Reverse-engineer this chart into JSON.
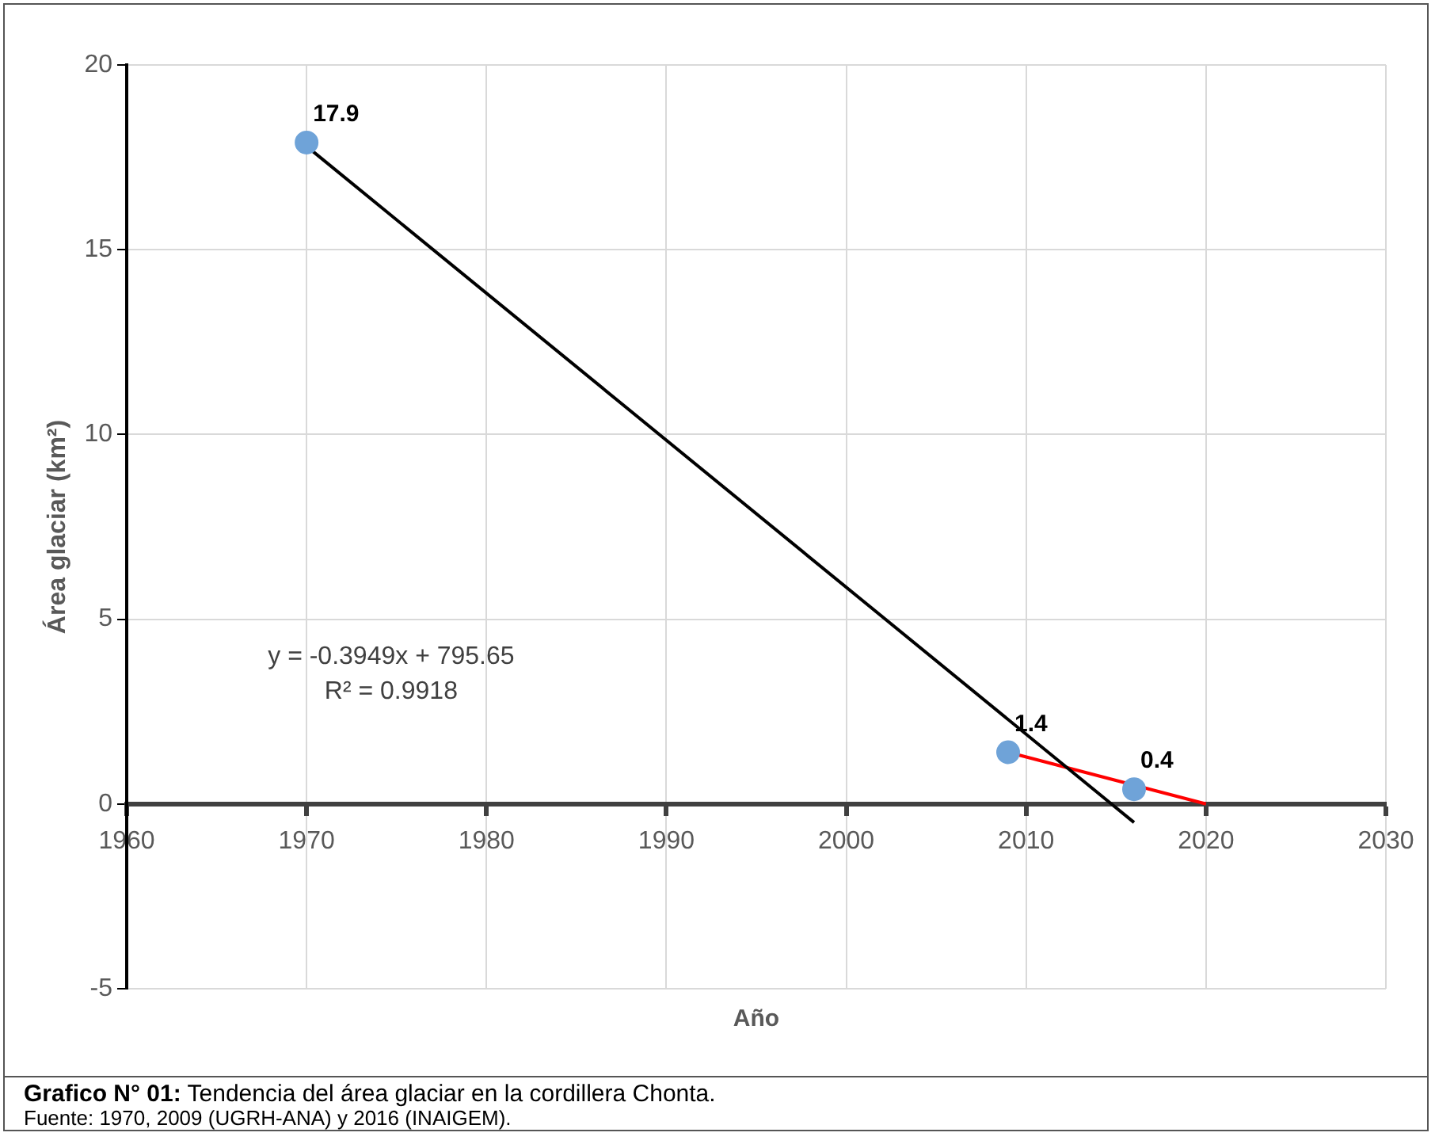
{
  "chart_data": {
    "type": "scatter",
    "title": "Grafico N° 01: Tendencia del área glaciar en la cordillera Chonta.",
    "xlabel": "Año",
    "ylabel": "Área glaciar (km²)",
    "series": [
      {
        "color": "#6fa3d8",
        "marker": "circle",
        "x": [
          1970,
          2009,
          2016
        ],
        "values": [
          17.9,
          1.4,
          0.4
        ],
        "value_labels": [
          "17.9",
          "1.4",
          "0.4"
        ]
      },
      {
        "type": "line",
        "marker": "none",
        "color": "#000000",
        "x": [
          1970,
          2016
        ],
        "values": [
          17.8,
          -0.5
        ]
      },
      {
        "type": "line",
        "marker": "none",
        "color": "#ff0000",
        "x": [
          2009,
          2020
        ],
        "values": [
          1.4,
          0
        ]
      }
    ],
    "xlim": [
      1960,
      2030
    ],
    "xticks": [
      1960,
      1970,
      1980,
      1990,
      2000,
      2010,
      2020,
      2030
    ],
    "ylim": [
      -5,
      20
    ],
    "yticks": [
      -5,
      0,
      5,
      10,
      15,
      20
    ],
    "grid": true,
    "legend": false,
    "annotations": [
      "y = -0.3949x + 795.65\nR² = 0.9918",
      "Fuente: 1970, 2009 (UGRH-ANA) y 2016 (INAIGEM)."
    ]
  }
}
